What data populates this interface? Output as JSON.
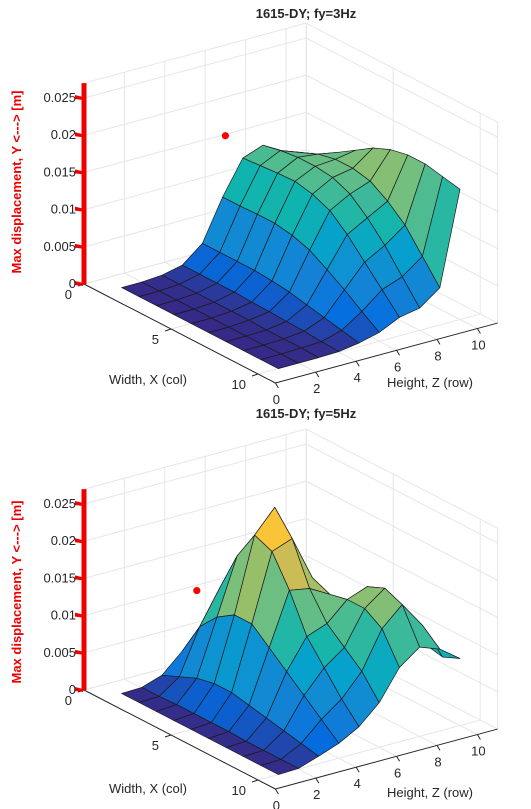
{
  "chart_data": [
    {
      "type": "surface",
      "title": "1615-DY; fy=3Hz",
      "xlabel": "Width, X (col)",
      "ylabel": "Height, Z (row)",
      "zlabel": "Max displacement, Y <---> [m]",
      "x_ticks": [
        "0",
        "5",
        "10"
      ],
      "y_ticks": [
        "0",
        "2",
        "4",
        "6",
        "8",
        "10"
      ],
      "z_ticks": [
        "0",
        "0.005",
        "0.01",
        "0.015",
        "0.02",
        "0.025"
      ],
      "xlim": [
        0,
        11
      ],
      "ylim": [
        0,
        11
      ],
      "zlim": [
        0,
        0.027
      ],
      "grid": true,
      "colormap": "parula",
      "marker": {
        "x": 0,
        "y": 7,
        "z": 0.0148,
        "color": "#ff0000"
      },
      "surface": {
        "x": [
          1,
          2,
          3,
          4,
          5,
          6,
          7,
          8,
          9,
          10
        ],
        "y": [
          1,
          2,
          3,
          4,
          5,
          6,
          7,
          8,
          9,
          10
        ],
        "z": [
          [
            0,
            0,
            0.0002,
            0.0008,
            0.003,
            0.0085,
            0.013,
            0.014,
            0.0125,
            0.0105
          ],
          [
            0,
            0,
            0.0002,
            0.0008,
            0.003,
            0.0085,
            0.0132,
            0.0145,
            0.0135,
            0.0125
          ],
          [
            0,
            0,
            0.0002,
            0.0008,
            0.003,
            0.0086,
            0.0134,
            0.0148,
            0.0145,
            0.014
          ],
          [
            0,
            0,
            0.0002,
            0.0008,
            0.003,
            0.0086,
            0.0135,
            0.0148,
            0.015,
            0.0155
          ],
          [
            0,
            0,
            0.0002,
            0.0007,
            0.0028,
            0.0082,
            0.013,
            0.0145,
            0.015,
            0.017
          ],
          [
            0,
            0,
            0.0002,
            0.0006,
            0.0025,
            0.0074,
            0.012,
            0.0135,
            0.0145,
            0.018
          ],
          [
            0,
            0,
            0.0001,
            0.0005,
            0.002,
            0.006,
            0.01,
            0.0115,
            0.013,
            0.0185
          ],
          [
            0,
            0,
            0.0001,
            0.0004,
            0.0015,
            0.0045,
            0.0075,
            0.009,
            0.011,
            0.0185
          ],
          [
            0,
            0,
            0.0001,
            0.0002,
            0.001,
            0.0028,
            0.005,
            0.006,
            0.008,
            0.018
          ],
          [
            0,
            0,
            0,
            0.0001,
            0.0005,
            0.0012,
            0.0025,
            0.003,
            0.005,
            0.0175
          ]
        ]
      }
    },
    {
      "type": "surface",
      "title": "1615-DY; fy=5Hz",
      "xlabel": "Width, X (col)",
      "ylabel": "Height, Z (row)",
      "zlabel": "Max displacement, Y <---> [m]",
      "x_ticks": [
        "0",
        "5",
        "10"
      ],
      "y_ticks": [
        "0",
        "2",
        "4",
        "6",
        "8",
        "10"
      ],
      "z_ticks": [
        "0",
        "0.005",
        "0.01",
        "0.015",
        "0.02",
        "0.025"
      ],
      "xlim": [
        0,
        11
      ],
      "ylim": [
        0,
        11
      ],
      "zlim": [
        0,
        0.027
      ],
      "grid": true,
      "colormap": "parula",
      "marker": {
        "x": 3,
        "y": 3,
        "z": 0.0148,
        "color": "#ff0000"
      },
      "surface": {
        "x": [
          1,
          2,
          3,
          4,
          5,
          6,
          7,
          8,
          9,
          10
        ],
        "y": [
          1,
          2,
          3,
          4,
          5,
          6,
          7,
          8,
          9,
          10
        ],
        "z": [
          [
            0,
            0.0001,
            0.001,
            0.0035,
            0.0055,
            0.0055,
            0.0042,
            0.003,
            0.002,
            0.002
          ],
          [
            0,
            0.0001,
            0.002,
            0.008,
            0.0125,
            0.012,
            0.0085,
            0.0055,
            0.0035,
            0.0035
          ],
          [
            0,
            0.0002,
            0.003,
            0.0105,
            0.018,
            0.019,
            0.0125,
            0.0075,
            0.0045,
            0.004
          ],
          [
            0,
            0.0002,
            0.0035,
            0.012,
            0.022,
            0.025,
            0.016,
            0.009,
            0.005,
            0.0045
          ],
          [
            0,
            0.0002,
            0.0035,
            0.012,
            0.021,
            0.022,
            0.016,
            0.0105,
            0.0065,
            0.0055
          ],
          [
            0,
            0.0002,
            0.003,
            0.01,
            0.017,
            0.0165,
            0.015,
            0.013,
            0.009,
            0.0065
          ],
          [
            0,
            0.0001,
            0.0025,
            0.008,
            0.012,
            0.013,
            0.0155,
            0.0165,
            0.012,
            0.0075
          ],
          [
            0,
            0.0001,
            0.002,
            0.006,
            0.009,
            0.011,
            0.0155,
            0.0175,
            0.014,
            0.0085
          ],
          [
            0,
            0.0001,
            0.0015,
            0.004,
            0.006,
            0.009,
            0.014,
            0.0165,
            0.013,
            0.008
          ],
          [
            0,
            0.0001,
            0.001,
            0.002,
            0.0035,
            0.006,
            0.01,
            0.012,
            0.011,
            0.009
          ]
        ]
      }
    }
  ]
}
